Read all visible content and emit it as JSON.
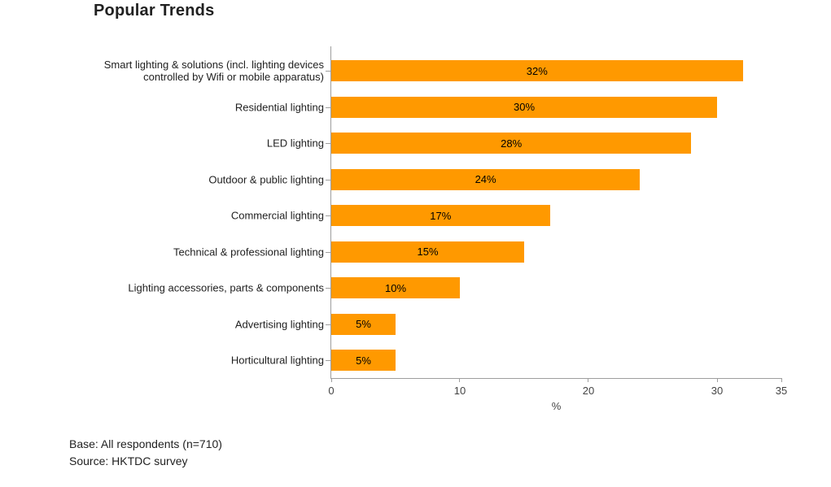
{
  "title": "Popular Trends",
  "footer": {
    "base_note": "Base: All respondents (n=710)",
    "source_note": "Source: HKTDC survey"
  },
  "chart_data": {
    "type": "bar",
    "orientation": "horizontal",
    "title": "Popular Trends",
    "categories": [
      "Smart lighting & solutions (incl. lighting devices controlled by Wifi or mobile apparatus)",
      "Residential lighting",
      "LED lighting",
      "Outdoor & public lighting",
      "Commercial lighting",
      "Technical & professional lighting",
      "Lighting accessories, parts & components",
      "Advertising lighting",
      "Horticultural lighting"
    ],
    "values": [
      32,
      30,
      28,
      24,
      17,
      15,
      10,
      5,
      5
    ],
    "value_labels": [
      "32%",
      "30%",
      "28%",
      "24%",
      "17%",
      "15%",
      "10%",
      "5%",
      "5%"
    ],
    "xlabel": "%",
    "ylabel": "",
    "xlim": [
      0,
      35
    ],
    "xticks": [
      0,
      10,
      20,
      30,
      35
    ],
    "grid": "off",
    "legend": "none",
    "bar_color": "#FF9900",
    "axis_color": "#9E9E9E",
    "value_label_color": "#000000"
  }
}
